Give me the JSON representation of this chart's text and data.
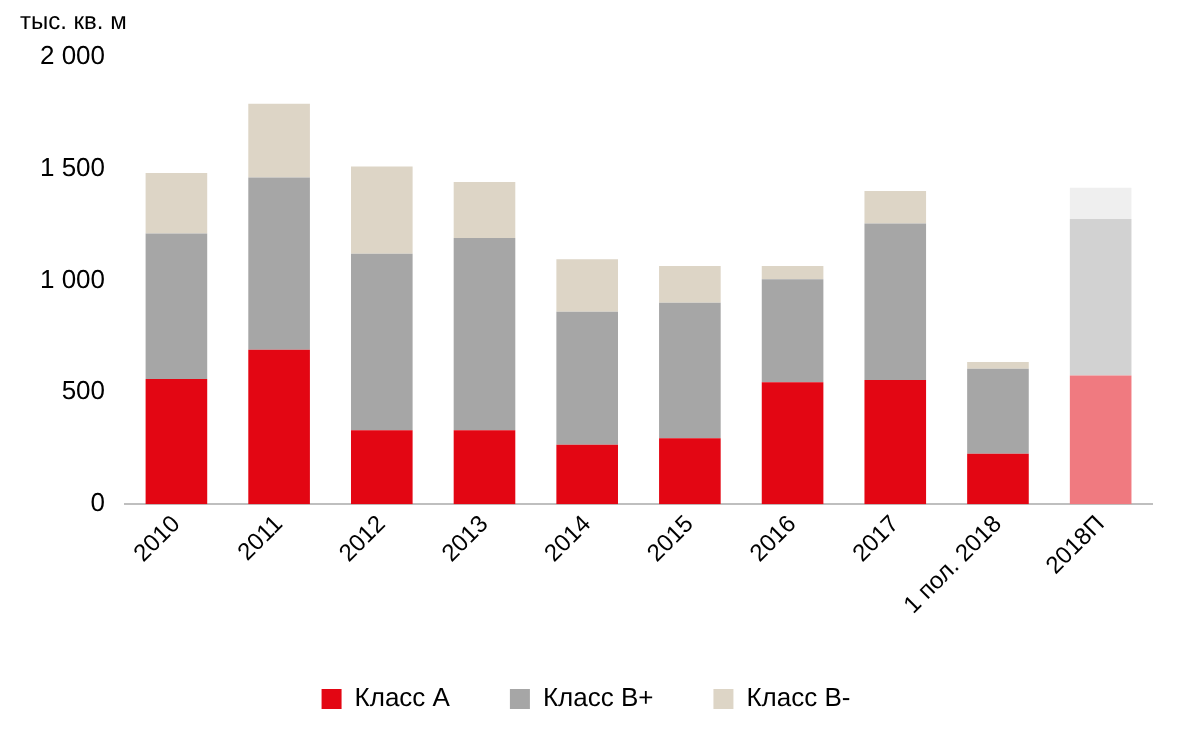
{
  "chart_data": {
    "type": "bar",
    "stacked": true,
    "ylabel": "тыс. кв. м",
    "categories": [
      "2010",
      "2011",
      "2012",
      "2013",
      "2014",
      "2015",
      "2016",
      "2017",
      "1 пол. 2018",
      "2018П"
    ],
    "series": [
      {
        "name": "Класс А",
        "color": "#e30613",
        "colors": [
          "#e30613",
          "#e30613",
          "#e30613",
          "#e30613",
          "#e30613",
          "#e30613",
          "#e30613",
          "#e30613",
          "#e30613",
          "#f07a80"
        ],
        "values": [
          560,
          690,
          330,
          330,
          265,
          295,
          545,
          555,
          225,
          575
        ]
      },
      {
        "name": "Класс В+",
        "color": "#a6a6a6",
        "colors": [
          "#a6a6a6",
          "#a6a6a6",
          "#a6a6a6",
          "#a6a6a6",
          "#a6a6a6",
          "#a6a6a6",
          "#a6a6a6",
          "#a6a6a6",
          "#a6a6a6",
          "#d2d2d2"
        ],
        "values": [
          650,
          770,
          790,
          860,
          595,
          605,
          460,
          700,
          380,
          700
        ]
      },
      {
        "name": "Класс В-",
        "color": "#ddd5c6",
        "colors": [
          "#ddd5c6",
          "#ddd5c6",
          "#ddd5c6",
          "#ddd5c6",
          "#ddd5c6",
          "#ddd5c6",
          "#ddd5c6",
          "#ddd5c6",
          "#ddd5c6",
          "#efefef"
        ],
        "values": [
          270,
          330,
          390,
          250,
          235,
          165,
          60,
          145,
          30,
          140
        ]
      }
    ],
    "ylim": [
      0,
      2000
    ],
    "yticks": [
      0,
      500,
      {
        "value": 1000,
        "label": "1 000"
      },
      {
        "value": 1500,
        "label": "1 500"
      },
      {
        "value": 2000,
        "label": "2 000"
      }
    ],
    "grid": false,
    "legend": "bottom"
  }
}
